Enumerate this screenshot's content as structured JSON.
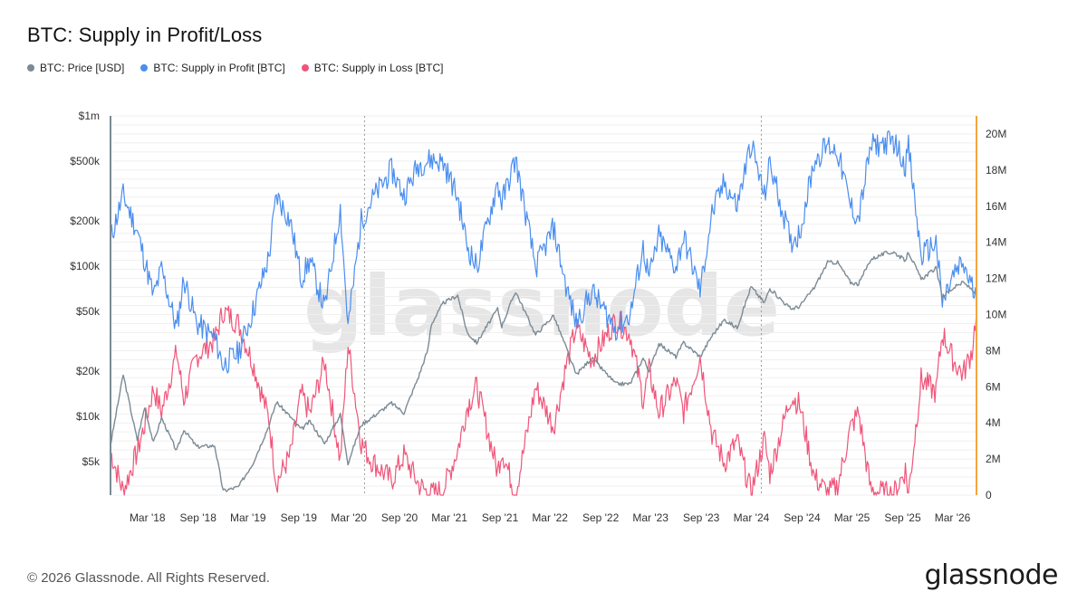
{
  "header": {
    "title": "BTC: Supply in Profit/Loss"
  },
  "legend": [
    {
      "label": "BTC: Price [USD]",
      "color": "#7b8a95"
    },
    {
      "label": "BTC: Supply in Profit [BTC]",
      "color": "#4a8ef0"
    },
    {
      "label": "BTC: Supply in Loss [BTC]",
      "color": "#f0557a"
    }
  ],
  "footer": {
    "copyright": "© 2026 Glassnode. All Rights Reserved.",
    "logo": "glassnode"
  },
  "watermark": "glassnode",
  "chart_data": {
    "type": "line",
    "title": "BTC: Supply in Profit/Loss",
    "x_ticks": [
      "Mar '18",
      "Sep '18",
      "Mar '19",
      "Sep '19",
      "Mar '20",
      "Sep '20",
      "Mar '21",
      "Sep '21",
      "Mar '22",
      "Sep '22",
      "Mar '23",
      "Sep '23",
      "Mar '24",
      "Sep '24",
      "Mar '25",
      "Sep '25",
      "Mar '26"
    ],
    "left_axis": {
      "scale": "log",
      "ticks": [
        "$5k",
        "$10k",
        "$20k",
        "$50k",
        "$100k",
        "$200k",
        "$500k",
        "$1m"
      ],
      "tick_values": [
        5000,
        10000,
        20000,
        50000,
        100000,
        200000,
        500000,
        1000000
      ]
    },
    "right_axis": {
      "scale": "linear",
      "ticks": [
        "0",
        "2M",
        "4M",
        "6M",
        "8M",
        "10M",
        "12M",
        "14M",
        "16M",
        "18M",
        "20M"
      ],
      "range": [
        0,
        20000000
      ]
    },
    "halving_lines": [
      "2020-05-11",
      "2024-04-20"
    ],
    "x_range": [
      "2017-11-01",
      "2026-06-10"
    ],
    "series": [
      {
        "name": "BTC: Price [USD]",
        "axis": "left",
        "color": "#7b8a95",
        "points": [
          [
            "2017-11-01",
            6500
          ],
          [
            "2017-12-17",
            19000
          ],
          [
            "2018-02-06",
            7000
          ],
          [
            "2018-03-05",
            11500
          ],
          [
            "2018-04-06",
            6700
          ],
          [
            "2018-05-05",
            9800
          ],
          [
            "2018-06-29",
            5900
          ],
          [
            "2018-07-25",
            8200
          ],
          [
            "2018-09-10",
            6300
          ],
          [
            "2018-11-14",
            6400
          ],
          [
            "2018-12-15",
            3200
          ],
          [
            "2019-02-08",
            3400
          ],
          [
            "2019-04-02",
            4900
          ],
          [
            "2019-05-30",
            8700
          ],
          [
            "2019-06-26",
            12500
          ],
          [
            "2019-08-15",
            10000
          ],
          [
            "2019-09-24",
            8200
          ],
          [
            "2019-10-26",
            9300
          ],
          [
            "2019-12-18",
            6600
          ],
          [
            "2020-02-13",
            10300
          ],
          [
            "2020-03-12",
            4900
          ],
          [
            "2020-04-29",
            8800
          ],
          [
            "2020-06-01",
            9700
          ],
          [
            "2020-08-17",
            12300
          ],
          [
            "2020-10-01",
            10600
          ],
          [
            "2020-11-23",
            18400
          ],
          [
            "2020-12-27",
            28000
          ],
          [
            "2021-01-08",
            41000
          ],
          [
            "2021-02-21",
            57000
          ],
          [
            "2021-04-14",
            64000
          ],
          [
            "2021-05-19",
            36000
          ],
          [
            "2021-06-22",
            31000
          ],
          [
            "2021-09-06",
            52000
          ],
          [
            "2021-09-21",
            40000
          ],
          [
            "2021-11-10",
            68000
          ],
          [
            "2022-01-22",
            35000
          ],
          [
            "2022-03-28",
            47000
          ],
          [
            "2022-05-12",
            29000
          ],
          [
            "2022-06-18",
            19000
          ],
          [
            "2022-08-14",
            24500
          ],
          [
            "2022-11-09",
            16500
          ],
          [
            "2022-12-31",
            16500
          ],
          [
            "2023-02-16",
            24500
          ],
          [
            "2023-03-10",
            20000
          ],
          [
            "2023-04-14",
            30500
          ],
          [
            "2023-06-15",
            25000
          ],
          [
            "2023-07-13",
            31000
          ],
          [
            "2023-09-11",
            25000
          ],
          [
            "2023-10-24",
            34500
          ],
          [
            "2023-12-08",
            44000
          ],
          [
            "2024-01-23",
            39000
          ],
          [
            "2024-03-14",
            73000
          ],
          [
            "2024-05-01",
            57000
          ],
          [
            "2024-05-21",
            71000
          ],
          [
            "2024-08-05",
            52000
          ],
          [
            "2024-09-06",
            54000
          ],
          [
            "2024-10-29",
            72000
          ],
          [
            "2024-12-17",
            106000
          ],
          [
            "2025-01-22",
            106000
          ],
          [
            "2025-03-10",
            78000
          ],
          [
            "2025-04-08",
            76000
          ],
          [
            "2025-05-22",
            111000
          ],
          [
            "2025-07-14",
            122000
          ],
          [
            "2025-08-14",
            124000
          ],
          [
            "2025-09-25",
            109000
          ],
          [
            "2025-10-06",
            125000
          ],
          [
            "2025-11-21",
            82000
          ],
          [
            "2026-01-14",
            97000
          ],
          [
            "2026-02-06",
            63000
          ],
          [
            "2026-03-20",
            72000
          ],
          [
            "2026-04-22",
            78000
          ],
          [
            "2026-05-25",
            70000
          ],
          [
            "2026-06-10",
            66000
          ]
        ]
      },
      {
        "name": "BTC: Supply in Profit [BTC]",
        "axis": "right",
        "color": "#4a8ef0",
        "points": [
          [
            "2017-11-01",
            14200000
          ],
          [
            "2017-12-17",
            16600000
          ],
          [
            "2018-02-06",
            14600000
          ],
          [
            "2018-03-05",
            13000000
          ],
          [
            "2018-04-06",
            11000000
          ],
          [
            "2018-05-05",
            12500000
          ],
          [
            "2018-06-29",
            9200000
          ],
          [
            "2018-07-25",
            12000000
          ],
          [
            "2018-09-10",
            9500000
          ],
          [
            "2018-11-14",
            8700000
          ],
          [
            "2018-12-15",
            7200000
          ],
          [
            "2019-02-08",
            7900000
          ],
          [
            "2019-04-02",
            10200000
          ],
          [
            "2019-05-30",
            13200000
          ],
          [
            "2019-06-26",
            16600000
          ],
          [
            "2019-08-15",
            15200000
          ],
          [
            "2019-09-24",
            12000000
          ],
          [
            "2019-10-26",
            13000000
          ],
          [
            "2019-12-18",
            10300000
          ],
          [
            "2020-02-13",
            15900000
          ],
          [
            "2020-03-12",
            9300000
          ],
          [
            "2020-04-29",
            15200000
          ],
          [
            "2020-06-01",
            16200000
          ],
          [
            "2020-08-17",
            18000000
          ],
          [
            "2020-10-01",
            16600000
          ],
          [
            "2020-11-23",
            18300000
          ],
          [
            "2020-12-27",
            18500000
          ],
          [
            "2021-01-08",
            18600000
          ],
          [
            "2021-02-21",
            18400000
          ],
          [
            "2021-04-14",
            16500000
          ],
          [
            "2021-05-19",
            13800000
          ],
          [
            "2021-06-22",
            12600000
          ],
          [
            "2021-09-06",
            17300000
          ],
          [
            "2021-09-21",
            16200000
          ],
          [
            "2021-11-10",
            18600000
          ],
          [
            "2022-01-22",
            12600000
          ],
          [
            "2022-03-28",
            14800000
          ],
          [
            "2022-05-12",
            11600000
          ],
          [
            "2022-06-18",
            9500000
          ],
          [
            "2022-08-14",
            11300000
          ],
          [
            "2022-11-09",
            9200000
          ],
          [
            "2022-12-31",
            10000000
          ],
          [
            "2023-02-16",
            13700000
          ],
          [
            "2023-03-10",
            12000000
          ],
          [
            "2023-04-14",
            14300000
          ],
          [
            "2023-06-15",
            12600000
          ],
          [
            "2023-07-13",
            14300000
          ],
          [
            "2023-09-11",
            11300000
          ],
          [
            "2023-10-24",
            15600000
          ],
          [
            "2023-12-08",
            17300000
          ],
          [
            "2024-01-23",
            16000000
          ],
          [
            "2024-03-14",
            19500000
          ],
          [
            "2024-05-01",
            16500000
          ],
          [
            "2024-05-21",
            18400000
          ],
          [
            "2024-08-05",
            14000000
          ],
          [
            "2024-09-06",
            14500000
          ],
          [
            "2024-10-29",
            18500000
          ],
          [
            "2024-12-17",
            19400000
          ],
          [
            "2025-01-22",
            19000000
          ],
          [
            "2025-03-10",
            16000000
          ],
          [
            "2025-04-08",
            15300000
          ],
          [
            "2025-05-22",
            19300000
          ],
          [
            "2025-07-14",
            19500000
          ],
          [
            "2025-08-14",
            19600000
          ],
          [
            "2025-09-25",
            18300000
          ],
          [
            "2025-10-06",
            19300000
          ],
          [
            "2025-11-21",
            13200000
          ],
          [
            "2026-01-14",
            14000000
          ],
          [
            "2026-02-06",
            10600000
          ],
          [
            "2026-03-20",
            12200000
          ],
          [
            "2026-04-22",
            12800000
          ],
          [
            "2026-05-25",
            11500000
          ],
          [
            "2026-06-10",
            10800000
          ]
        ]
      },
      {
        "name": "BTC: Supply in Loss [BTC]",
        "axis": "right",
        "color": "#f0557a",
        "points": [
          [
            "2017-11-01",
            2400000
          ],
          [
            "2017-12-17",
            200000
          ],
          [
            "2018-02-06",
            2400000
          ],
          [
            "2018-03-05",
            3900000
          ],
          [
            "2018-04-06",
            5900000
          ],
          [
            "2018-05-05",
            4600000
          ],
          [
            "2018-06-29",
            7900000
          ],
          [
            "2018-07-25",
            5300000
          ],
          [
            "2018-09-10",
            7700000
          ],
          [
            "2018-11-14",
            8600000
          ],
          [
            "2018-12-15",
            10200000
          ],
          [
            "2019-02-08",
            9500000
          ],
          [
            "2019-04-02",
            7300000
          ],
          [
            "2019-05-30",
            4200000
          ],
          [
            "2019-06-26",
            700000
          ],
          [
            "2019-08-15",
            2200000
          ],
          [
            "2019-09-24",
            5600000
          ],
          [
            "2019-10-26",
            4500000
          ],
          [
            "2019-12-18",
            7400000
          ],
          [
            "2020-02-13",
            1900000
          ],
          [
            "2020-03-12",
            8400000
          ],
          [
            "2020-04-29",
            2900000
          ],
          [
            "2020-06-01",
            2000000
          ],
          [
            "2020-08-17",
            800000
          ],
          [
            "2020-10-01",
            2200000
          ],
          [
            "2020-11-23",
            600000
          ],
          [
            "2020-12-27",
            100000
          ],
          [
            "2021-01-08",
            50000
          ],
          [
            "2021-02-21",
            300000
          ],
          [
            "2021-04-14",
            2500000
          ],
          [
            "2021-05-19",
            4900000
          ],
          [
            "2021-06-22",
            6000000
          ],
          [
            "2021-09-06",
            1300000
          ],
          [
            "2021-09-21",
            2500000
          ],
          [
            "2021-11-10",
            50000
          ],
          [
            "2022-01-22",
            6000000
          ],
          [
            "2022-03-28",
            3800000
          ],
          [
            "2022-05-12",
            7100000
          ],
          [
            "2022-06-18",
            9300000
          ],
          [
            "2022-08-14",
            7500000
          ],
          [
            "2022-11-09",
            9700000
          ],
          [
            "2022-12-31",
            8900000
          ],
          [
            "2023-02-16",
            5300000
          ],
          [
            "2023-03-10",
            6900000
          ],
          [
            "2023-04-14",
            4600000
          ],
          [
            "2023-06-15",
            6300000
          ],
          [
            "2023-07-13",
            4600000
          ],
          [
            "2023-09-11",
            7700000
          ],
          [
            "2023-10-24",
            3400000
          ],
          [
            "2023-12-08",
            1800000
          ],
          [
            "2024-01-23",
            3000000
          ],
          [
            "2024-03-14",
            100000
          ],
          [
            "2024-05-01",
            3100000
          ],
          [
            "2024-05-21",
            1200000
          ],
          [
            "2024-08-05",
            5500000
          ],
          [
            "2024-09-06",
            5000000
          ],
          [
            "2024-10-29",
            1000000
          ],
          [
            "2024-12-17",
            100000
          ],
          [
            "2025-01-22",
            500000
          ],
          [
            "2025-03-10",
            3700000
          ],
          [
            "2025-04-08",
            4600000
          ],
          [
            "2025-05-22",
            300000
          ],
          [
            "2025-07-14",
            100000
          ],
          [
            "2025-08-14",
            50000
          ],
          [
            "2025-09-25",
            1400000
          ],
          [
            "2025-10-06",
            50000
          ],
          [
            "2025-11-21",
            6400000
          ],
          [
            "2026-01-14",
            5700000
          ],
          [
            "2026-02-06",
            9000000
          ],
          [
            "2026-03-20",
            7400000
          ],
          [
            "2026-04-22",
            6700000
          ],
          [
            "2026-05-25",
            8000000
          ],
          [
            "2026-06-10",
            10200000
          ]
        ]
      }
    ]
  }
}
